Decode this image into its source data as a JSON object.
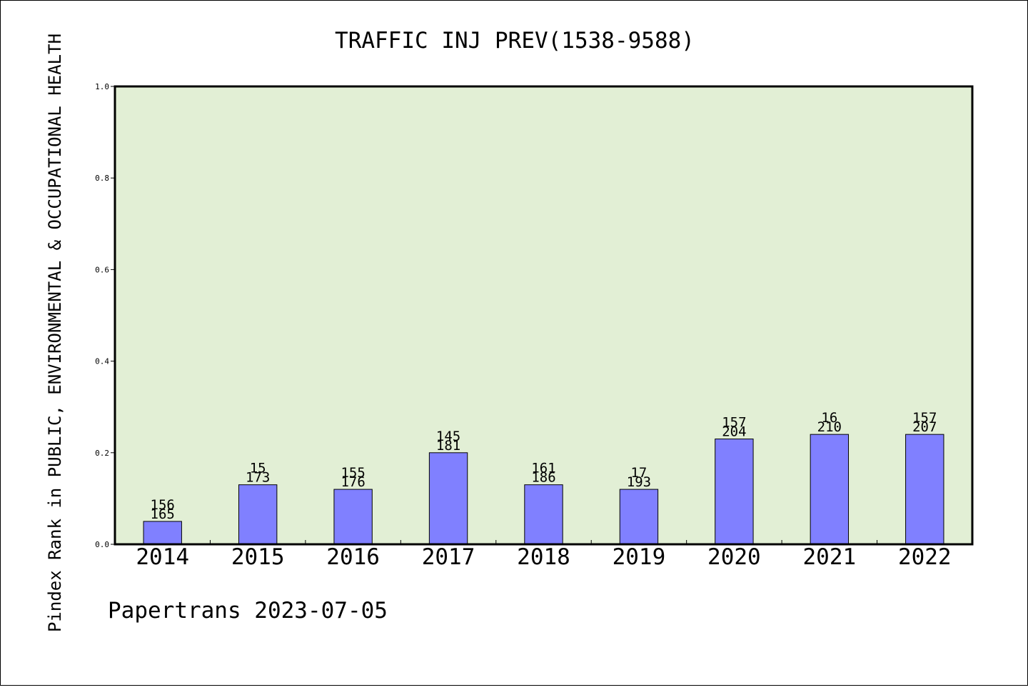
{
  "chart_data": {
    "type": "bar",
    "title": "TRAFFIC INJ PREV(1538-9588)",
    "ylabel": "Pindex Rank in PUBLIC, ENVIRONMENTAL & OCCUPATIONAL HEALTH",
    "xlabel": "",
    "footer": "Papertrans 2023-07-05",
    "categories": [
      "2014",
      "2015",
      "2016",
      "2017",
      "2018",
      "2019",
      "2020",
      "2021",
      "2022"
    ],
    "values": [
      0.05,
      0.13,
      0.12,
      0.2,
      0.13,
      0.12,
      0.23,
      0.24,
      0.24
    ],
    "labels_top": [
      "156",
      "15",
      "155",
      "145",
      "161",
      "17",
      "157",
      "16",
      "157"
    ],
    "labels_bottom": [
      "165",
      "173",
      "176",
      "181",
      "186",
      "193",
      "204",
      "210",
      "207"
    ],
    "ylim": [
      0.0,
      1.0
    ],
    "yticks": [
      "0.0",
      "0.2",
      "0.4",
      "0.6",
      "0.8",
      "1.0"
    ],
    "grid": false,
    "plot_background": "#e2efd5",
    "bar_color": "#8080ff",
    "bar_edge_color": "#000000"
  }
}
